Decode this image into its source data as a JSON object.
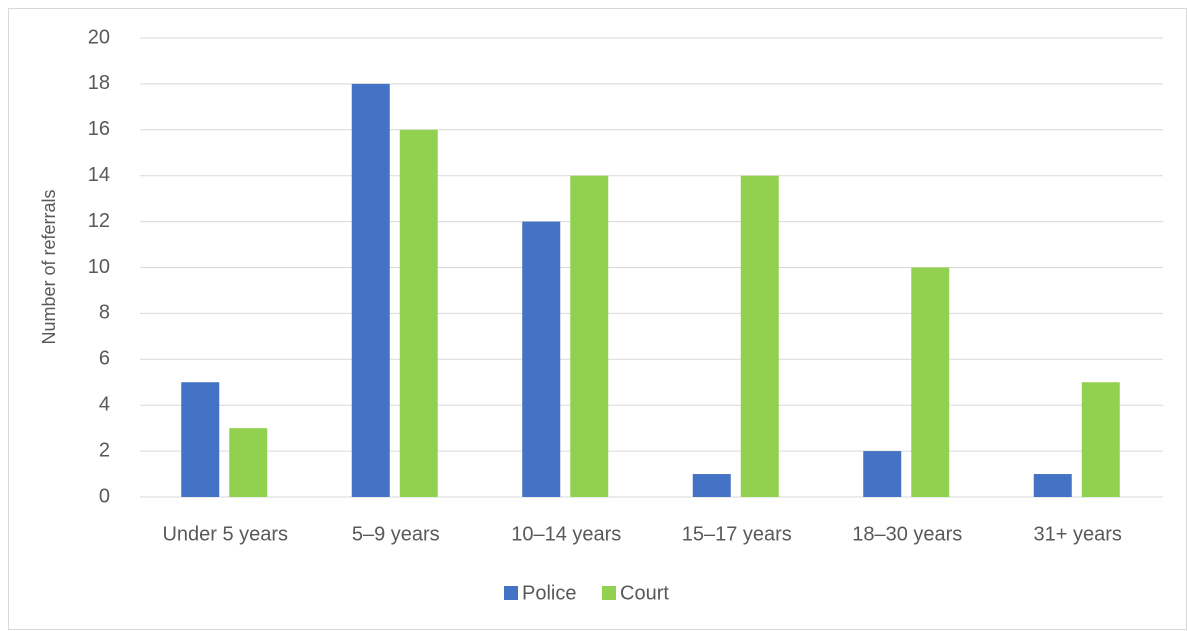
{
  "chart_data": {
    "type": "bar",
    "categories": [
      "Under 5 years",
      "5–9 years",
      "10–14 years",
      "15–17 years",
      "18–30 years",
      "31+ years"
    ],
    "series": [
      {
        "name": "Police",
        "color": "#4472c4",
        "values": [
          5,
          18,
          12,
          1,
          2,
          1
        ]
      },
      {
        "name": "Court",
        "color": "#92d050",
        "values": [
          3,
          16,
          14,
          14,
          10,
          5
        ]
      }
    ],
    "y_label": "Number of referrals",
    "ylim": [
      0,
      20
    ],
    "yticks": [
      0,
      2,
      4,
      6,
      8,
      10,
      12,
      14,
      16,
      18,
      20
    ],
    "grid": true,
    "legend": "bottom"
  }
}
